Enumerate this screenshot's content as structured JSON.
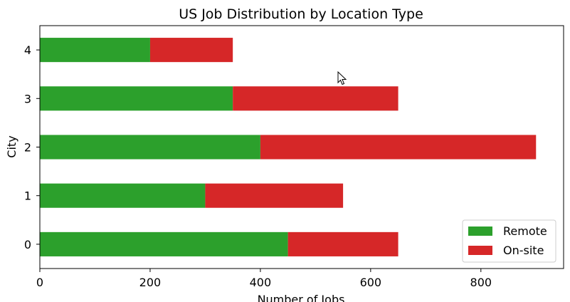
{
  "chart_data": {
    "type": "bar",
    "orientation": "horizontal",
    "stacked": true,
    "title": "US Job Distribution by Location Type",
    "xlabel": "Number of Jobs",
    "ylabel": "City",
    "categories": [
      "0",
      "1",
      "2",
      "3",
      "4"
    ],
    "series": [
      {
        "name": "Remote",
        "color": "#2ca02c",
        "values": [
          450,
          300,
          400,
          350,
          200
        ]
      },
      {
        "name": "On-site",
        "color": "#d62728",
        "values": [
          200,
          250,
          500,
          300,
          150
        ]
      }
    ],
    "xlim": [
      0,
      950
    ],
    "xticks": [
      0,
      200,
      400,
      600,
      800
    ],
    "grid": false,
    "legend": "lower-right"
  },
  "cursor": {
    "icon": "mouse-pointer-icon"
  }
}
